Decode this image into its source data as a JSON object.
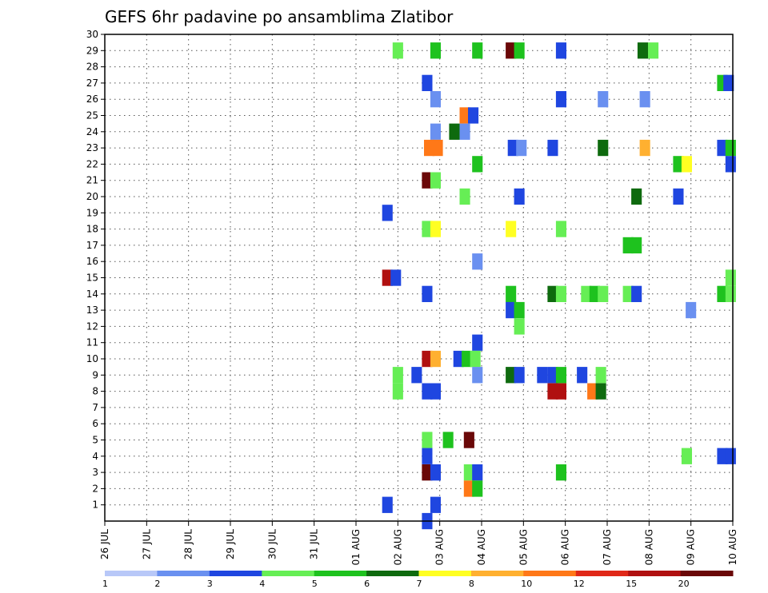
{
  "chart_data": {
    "type": "heatmap",
    "title": "GEFS 6hr padavine po ansamblima Zlatibor",
    "xlabel": "",
    "ylabel": "",
    "x_tick_labels": [
      "26 JUL",
      "27 JUL",
      "28 JUL",
      "29 JUL",
      "30 JUL",
      "31 JUL",
      "01 AUG",
      "02 AUG",
      "03 AUG",
      "04 AUG",
      "05 AUG",
      "06 AUG",
      "07 AUG",
      "08 AUG",
      "09 AUG",
      "10 AUG"
    ],
    "x_range_days": [
      0,
      15
    ],
    "y_tick_labels": [
      "1",
      "2",
      "3",
      "4",
      "5",
      "6",
      "7",
      "8",
      "9",
      "10",
      "11",
      "12",
      "13",
      "14",
      "15",
      "16",
      "17",
      "18",
      "19",
      "20",
      "21",
      "22",
      "23",
      "24",
      "25",
      "26",
      "27",
      "28",
      "29",
      "30"
    ],
    "y_range": [
      0,
      30
    ],
    "grid": "dotted",
    "legend": {
      "placement": "bottom",
      "labels": [
        "1",
        "2",
        "3",
        "4",
        "5",
        "6",
        "7",
        "8",
        "10",
        "12",
        "15",
        "20"
      ],
      "colors": [
        "#b8c8f8",
        "#6a90f0",
        "#1f46e0",
        "#66ee55",
        "#1ec21e",
        "#0e6a0e",
        "#ffff22",
        "#ffb030",
        "#ff7818",
        "#e02818",
        "#b01010",
        "#6a0808"
      ]
    },
    "series": [
      {
        "member": 29,
        "points": [
          [
            7.0,
            3
          ],
          [
            7.9,
            4
          ],
          [
            8.9,
            4
          ],
          [
            9.7,
            11
          ],
          [
            9.9,
            4
          ],
          [
            10.9,
            2
          ],
          [
            12.85,
            5
          ],
          [
            13.1,
            3
          ]
        ]
      },
      {
        "member": 27,
        "points": [
          [
            7.7,
            2
          ],
          [
            14.75,
            4
          ],
          [
            14.9,
            2
          ]
        ]
      },
      {
        "member": 26,
        "points": [
          [
            7.9,
            1
          ],
          [
            10.9,
            2
          ],
          [
            11.9,
            1
          ],
          [
            12.9,
            1
          ]
        ]
      },
      {
        "member": 25,
        "points": [
          [
            8.6,
            8
          ],
          [
            8.8,
            2
          ]
        ]
      },
      {
        "member": 24,
        "points": [
          [
            7.9,
            1
          ],
          [
            8.35,
            5
          ],
          [
            8.6,
            1
          ]
        ]
      },
      {
        "member": 23,
        "points": [
          [
            7.75,
            8
          ],
          [
            7.95,
            8
          ],
          [
            9.75,
            2
          ],
          [
            9.95,
            1
          ],
          [
            10.7,
            2
          ],
          [
            11.9,
            5
          ],
          [
            12.9,
            7
          ],
          [
            14.75,
            2
          ],
          [
            14.95,
            4
          ]
        ]
      },
      {
        "member": 22,
        "points": [
          [
            8.9,
            4
          ],
          [
            13.7,
            4
          ],
          [
            13.9,
            6
          ],
          [
            14.95,
            2
          ]
        ]
      },
      {
        "member": 21,
        "points": [
          [
            7.7,
            11
          ],
          [
            7.9,
            3
          ]
        ]
      },
      {
        "member": 20,
        "points": [
          [
            8.6,
            3
          ],
          [
            9.9,
            2
          ],
          [
            12.7,
            5
          ],
          [
            13.7,
            2
          ]
        ]
      },
      {
        "member": 19,
        "points": [
          [
            6.75,
            2
          ]
        ]
      },
      {
        "member": 18,
        "points": [
          [
            7.7,
            3
          ],
          [
            7.9,
            6
          ],
          [
            9.7,
            6
          ],
          [
            10.9,
            3
          ]
        ]
      },
      {
        "member": 17,
        "points": [
          [
            12.5,
            4
          ],
          [
            12.7,
            4
          ]
        ]
      },
      {
        "member": 16,
        "points": [
          [
            8.9,
            1
          ]
        ]
      },
      {
        "member": 15,
        "points": [
          [
            6.75,
            10
          ],
          [
            6.95,
            2
          ],
          [
            14.95,
            3
          ]
        ]
      },
      {
        "member": 14,
        "points": [
          [
            7.7,
            2
          ],
          [
            9.7,
            4
          ],
          [
            10.7,
            5
          ],
          [
            10.9,
            3
          ],
          [
            11.5,
            3
          ],
          [
            11.7,
            4
          ],
          [
            11.9,
            3
          ],
          [
            12.5,
            3
          ],
          [
            12.7,
            2
          ],
          [
            14.75,
            4
          ],
          [
            14.95,
            3
          ]
        ]
      },
      {
        "member": 13,
        "points": [
          [
            9.7,
            2
          ],
          [
            9.9,
            4
          ],
          [
            14.0,
            1
          ]
        ]
      },
      {
        "member": 12,
        "points": [
          [
            9.9,
            3
          ]
        ]
      },
      {
        "member": 11,
        "points": [
          [
            8.9,
            2
          ]
        ]
      },
      {
        "member": 10,
        "points": [
          [
            7.7,
            10
          ],
          [
            7.9,
            7
          ],
          [
            8.45,
            2
          ],
          [
            8.65,
            4
          ],
          [
            8.85,
            3
          ]
        ]
      },
      {
        "member": 9,
        "points": [
          [
            7.0,
            3
          ],
          [
            7.45,
            2
          ],
          [
            8.9,
            1
          ],
          [
            9.7,
            5
          ],
          [
            9.9,
            2
          ],
          [
            10.45,
            2
          ],
          [
            10.7,
            2
          ],
          [
            10.9,
            4
          ],
          [
            11.4,
            2
          ],
          [
            11.85,
            3
          ]
        ]
      },
      {
        "member": 8,
        "points": [
          [
            7.0,
            3
          ],
          [
            7.7,
            2
          ],
          [
            7.9,
            2
          ],
          [
            10.7,
            10
          ],
          [
            10.9,
            10
          ],
          [
            11.65,
            8
          ],
          [
            11.85,
            5
          ]
        ]
      },
      {
        "member": 5,
        "points": [
          [
            7.7,
            3
          ],
          [
            8.2,
            4
          ],
          [
            8.7,
            11
          ]
        ]
      },
      {
        "member": 4,
        "points": [
          [
            7.7,
            2
          ],
          [
            13.9,
            3
          ],
          [
            14.75,
            2
          ],
          [
            14.95,
            2
          ]
        ]
      },
      {
        "member": 3,
        "points": [
          [
            7.7,
            11
          ],
          [
            7.9,
            2
          ],
          [
            8.7,
            3
          ],
          [
            8.9,
            2
          ],
          [
            10.9,
            4
          ]
        ]
      },
      {
        "member": 2,
        "points": [
          [
            8.7,
            8
          ],
          [
            8.9,
            4
          ]
        ]
      },
      {
        "member": 1,
        "points": [
          [
            6.75,
            2
          ],
          [
            7.9,
            2
          ]
        ]
      },
      {
        "member": 0,
        "points": [
          [
            7.7,
            2
          ]
        ]
      }
    ]
  }
}
